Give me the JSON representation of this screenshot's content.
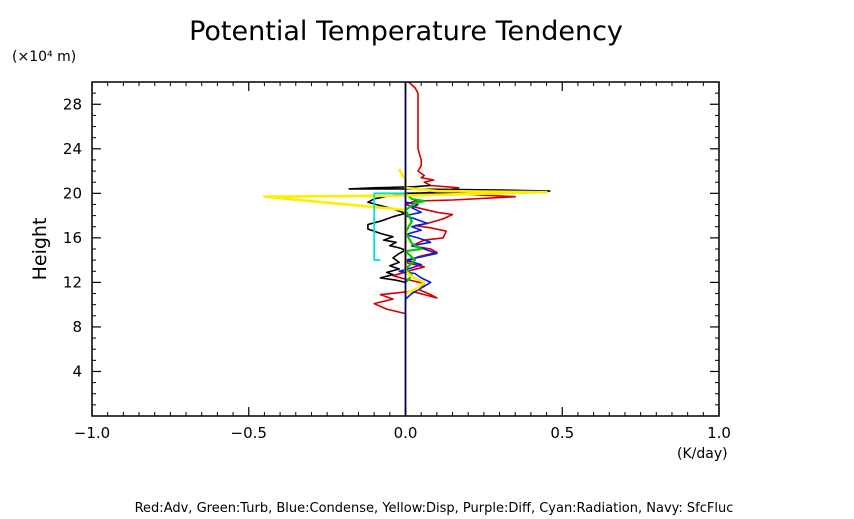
{
  "chart_data": {
    "type": "line",
    "title": "Potential Temperature Tendency",
    "ylabel": "Height",
    "y_unit_label": "(×10⁴ m)",
    "x_unit_label": "(K/day)",
    "caption": "Red:Adv, Green:Turb, Blue:Condense, Yellow:Disp, Purple:Diff, Cyan:Radiation, Navy: SfcFluc",
    "xlim": [
      -1.0,
      1.0
    ],
    "ylim": [
      0,
      30
    ],
    "x_ticks": [
      -1.0,
      -0.5,
      0.0,
      0.5,
      1.0
    ],
    "x_tick_labels": [
      "−1.0",
      "−0.5",
      "0.0",
      "0.5",
      "1.0"
    ],
    "y_ticks": [
      4,
      8,
      12,
      16,
      20,
      24,
      28
    ],
    "y_tick_labels": [
      "4",
      "8",
      "12",
      "16",
      "20",
      "24",
      "28"
    ],
    "grid": false,
    "series": [
      {
        "color": "#d40000",
        "points": [
          [
            0.0,
            8.5
          ],
          [
            0.0,
            9.2
          ],
          [
            -0.06,
            9.6
          ],
          [
            -0.1,
            10.1
          ],
          [
            -0.04,
            10.5
          ],
          [
            -0.08,
            10.9
          ],
          [
            0.02,
            11.2
          ],
          [
            0.06,
            10.9
          ],
          [
            0.1,
            10.6
          ],
          [
            0.08,
            10.9
          ],
          [
            0.04,
            11.4
          ],
          [
            0.06,
            11.9
          ],
          [
            0.0,
            12.3
          ],
          [
            -0.04,
            12.6
          ],
          [
            0.02,
            13.1
          ],
          [
            0.06,
            13.4
          ],
          [
            0.0,
            13.8
          ],
          [
            0.04,
            14.3
          ],
          [
            0.1,
            14.7
          ],
          [
            0.08,
            15.0
          ],
          [
            0.02,
            15.3
          ],
          [
            0.06,
            15.8
          ],
          [
            0.12,
            16.0
          ],
          [
            0.13,
            16.6
          ],
          [
            0.08,
            16.9
          ],
          [
            0.03,
            17.1
          ],
          [
            0.07,
            17.3
          ],
          [
            0.12,
            17.7
          ],
          [
            0.15,
            18.1
          ],
          [
            0.1,
            18.3
          ],
          [
            0.04,
            18.7
          ],
          [
            0.0,
            19.0
          ],
          [
            0.03,
            19.3
          ],
          [
            0.15,
            19.4
          ],
          [
            0.35,
            19.7
          ],
          [
            0.2,
            19.9
          ],
          [
            0.05,
            20.0
          ],
          [
            0.12,
            20.2
          ],
          [
            0.17,
            20.5
          ],
          [
            0.08,
            20.7
          ],
          [
            0.06,
            21.0
          ],
          [
            0.09,
            21.2
          ],
          [
            0.05,
            21.4
          ],
          [
            0.06,
            21.6
          ],
          [
            0.04,
            22.0
          ],
          [
            0.05,
            22.5
          ],
          [
            0.05,
            23.0
          ],
          [
            0.04,
            24.0
          ],
          [
            0.04,
            25.0
          ],
          [
            0.04,
            26.0
          ],
          [
            0.04,
            27.0
          ],
          [
            0.04,
            28.0
          ],
          [
            0.04,
            29.0
          ],
          [
            0.03,
            29.5
          ],
          [
            0.01,
            30.0
          ]
        ]
      },
      {
        "color": "#000000",
        "points": [
          [
            0.0,
            12.0
          ],
          [
            -0.03,
            12.2
          ],
          [
            -0.08,
            12.4
          ],
          [
            -0.04,
            12.7
          ],
          [
            -0.06,
            12.9
          ],
          [
            -0.02,
            13.2
          ],
          [
            -0.05,
            13.5
          ],
          [
            -0.02,
            13.8
          ],
          [
            -0.04,
            14.2
          ],
          [
            -0.02,
            14.6
          ],
          [
            0.0,
            14.9
          ],
          [
            -0.02,
            15.1
          ],
          [
            -0.05,
            15.3
          ],
          [
            -0.03,
            15.6
          ],
          [
            -0.07,
            15.8
          ],
          [
            -0.04,
            16.1
          ],
          [
            -0.08,
            16.4
          ],
          [
            -0.12,
            16.8
          ],
          [
            -0.12,
            17.2
          ],
          [
            -0.08,
            17.5
          ],
          [
            -0.04,
            17.9
          ],
          [
            0.0,
            18.2
          ],
          [
            -0.04,
            18.6
          ],
          [
            -0.08,
            18.9
          ],
          [
            -0.12,
            19.2
          ],
          [
            -0.1,
            19.5
          ],
          [
            -0.05,
            19.8
          ],
          [
            0.0,
            20.0
          ],
          [
            0.2,
            20.1
          ],
          [
            0.46,
            20.2
          ],
          [
            0.3,
            20.3
          ],
          [
            0.0,
            20.4
          ],
          [
            -0.18,
            20.4
          ],
          [
            -0.1,
            20.5
          ],
          [
            0.03,
            20.6
          ],
          [
            0.08,
            20.7
          ]
        ]
      },
      {
        "color": "#0020e0",
        "points": [
          [
            0.0,
            10.5
          ],
          [
            0.02,
            11.0
          ],
          [
            0.05,
            11.5
          ],
          [
            0.08,
            12.0
          ],
          [
            0.05,
            12.4
          ],
          [
            0.03,
            12.8
          ],
          [
            -0.02,
            13.0
          ],
          [
            0.02,
            13.3
          ],
          [
            0.05,
            13.6
          ],
          [
            0.0,
            14.0
          ],
          [
            0.05,
            14.3
          ],
          [
            0.1,
            14.6
          ],
          [
            0.06,
            15.0
          ],
          [
            0.02,
            15.3
          ],
          [
            0.08,
            15.6
          ],
          [
            0.04,
            16.0
          ],
          [
            0.0,
            16.3
          ],
          [
            0.05,
            16.7
          ],
          [
            0.02,
            17.0
          ],
          [
            0.07,
            17.3
          ],
          [
            0.03,
            17.7
          ],
          [
            0.0,
            18.0
          ],
          [
            0.05,
            18.3
          ],
          [
            0.02,
            18.7
          ],
          [
            0.04,
            19.0
          ],
          [
            0.0,
            19.2
          ]
        ]
      },
      {
        "color": "#00cc00",
        "points": [
          [
            0.0,
            12.0
          ],
          [
            0.02,
            12.6
          ],
          [
            0.0,
            13.2
          ],
          [
            0.03,
            14.0
          ],
          [
            0.0,
            14.8
          ],
          [
            0.05,
            15.0
          ],
          [
            0.02,
            15.5
          ],
          [
            0.0,
            16.5
          ],
          [
            0.02,
            17.5
          ],
          [
            0.0,
            18.5
          ],
          [
            0.03,
            19.1
          ],
          [
            0.06,
            19.3
          ],
          [
            0.02,
            19.5
          ],
          [
            0.0,
            20.0
          ]
        ]
      },
      {
        "color": "#ffee00",
        "points": [
          [
            0.0,
            11.0
          ],
          [
            0.04,
            11.5
          ],
          [
            0.06,
            12.0
          ],
          [
            0.02,
            12.5
          ],
          [
            0.0,
            13.0
          ],
          [
            0.0,
            18.5
          ],
          [
            -0.45,
            19.7
          ],
          [
            0.0,
            19.8
          ],
          [
            0.45,
            20.1
          ],
          [
            0.1,
            20.2
          ],
          [
            0.0,
            20.5
          ],
          [
            0.0,
            21.3
          ],
          [
            -0.01,
            21.6
          ],
          [
            -0.02,
            22.2
          ]
        ]
      },
      {
        "color": "#00e0e0",
        "points": [
          [
            -0.08,
            14.0
          ],
          [
            -0.1,
            14.0
          ],
          [
            -0.1,
            20.0
          ],
          [
            -0.05,
            20.0
          ],
          [
            0.0,
            20.0
          ]
        ]
      },
      {
        "color": "#00005a",
        "points": [
          [
            0.0,
            0.0
          ],
          [
            0.0,
            30.0
          ]
        ]
      }
    ]
  }
}
